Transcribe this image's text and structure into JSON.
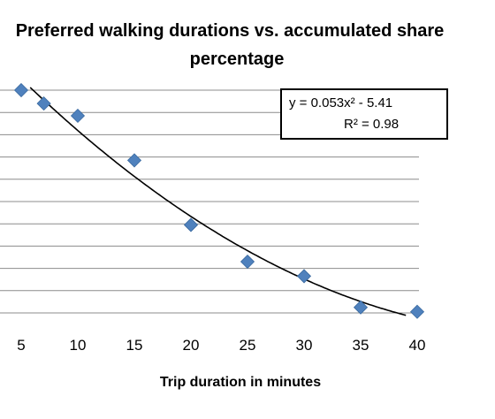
{
  "chart_data": {
    "type": "scatter",
    "title_lines": [
      "Preferred walking durations vs. accumulated share",
      "percentage"
    ],
    "xlabel": "Trip duration in minutes",
    "ylabel": "",
    "x_ticks": [
      5,
      10,
      15,
      20,
      25,
      30,
      35,
      40
    ],
    "xlim": [
      5,
      40
    ],
    "ylim": [
      0,
      100
    ],
    "grid": "horizontal",
    "points": [
      {
        "x": 5,
        "y": 100
      },
      {
        "x": 7,
        "y": 94
      },
      {
        "x": 10,
        "y": 88.5
      },
      {
        "x": 15,
        "y": 68.5
      },
      {
        "x": 20,
        "y": 39.5
      },
      {
        "x": 25,
        "y": 23
      },
      {
        "x": 30,
        "y": 16.5
      },
      {
        "x": 35,
        "y": 2.5
      },
      {
        "x": 40,
        "y": 0.5
      }
    ],
    "trendline": {
      "type": "polynomial",
      "equation": "y = 0.053x² - 5.41",
      "r_squared": "R² = 0.98"
    },
    "marker_color": "#4F81BD"
  }
}
